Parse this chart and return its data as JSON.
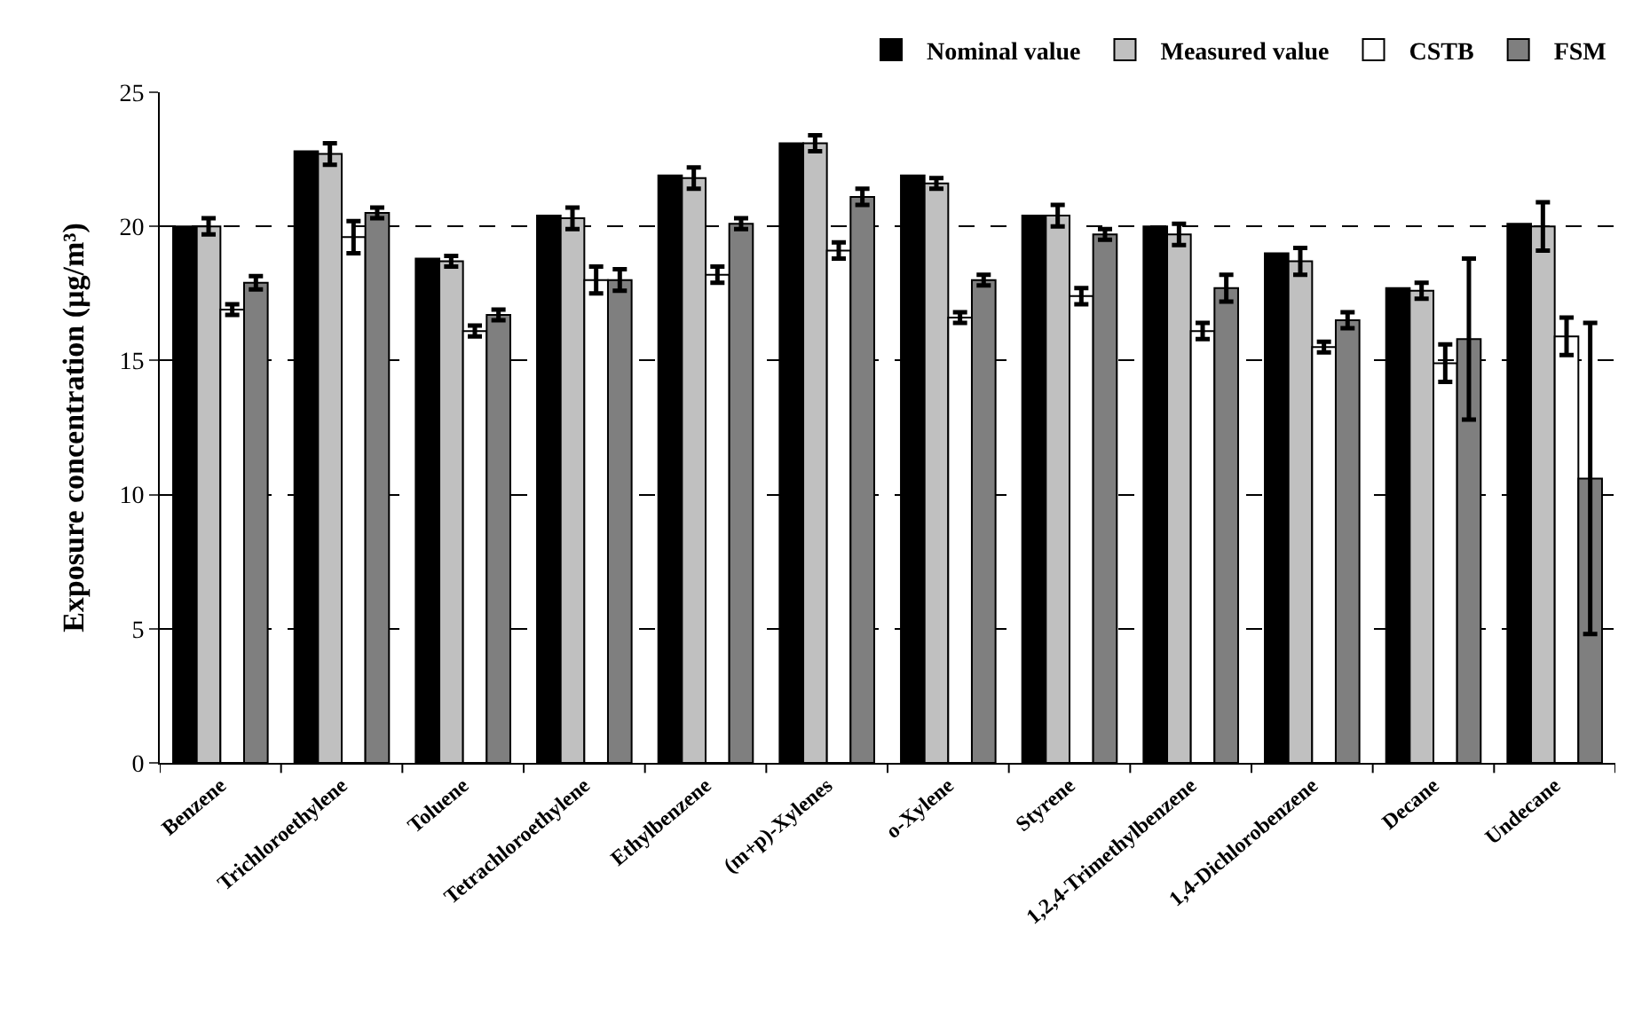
{
  "chart_data": {
    "type": "bar",
    "ylabel": "Exposure concentration (µg/m³)",
    "categories": [
      "Benzene",
      "Trichloroethylene",
      "Toluene",
      "Tetrachloroethylene",
      "Ethylbenzene",
      "(m+p)-Xylenes",
      "o-Xylene",
      "Styrene",
      "1,2,4-Trimethylbenzene",
      "1,4-Dichlorobenzene",
      "Decane",
      "Undecane"
    ],
    "series": [
      {
        "name": "Nominal value",
        "color": "#000000",
        "values": [
          20.0,
          22.8,
          18.8,
          20.4,
          21.9,
          23.1,
          21.9,
          20.4,
          20.0,
          19.0,
          17.7,
          20.1
        ]
      },
      {
        "name": "Measured value",
        "color": "#c0c0c0",
        "values": [
          20.0,
          22.7,
          18.7,
          20.3,
          21.8,
          23.1,
          21.6,
          20.4,
          19.7,
          18.7,
          17.6,
          20.0
        ],
        "errors": [
          0.3,
          0.4,
          0.2,
          0.4,
          0.4,
          0.3,
          0.2,
          0.4,
          0.4,
          0.5,
          0.3,
          0.9
        ]
      },
      {
        "name": "CSTB",
        "color": "#ffffff",
        "values": [
          16.9,
          19.6,
          16.1,
          18.0,
          18.2,
          19.1,
          16.6,
          17.4,
          16.1,
          15.5,
          14.9,
          15.9
        ],
        "errors": [
          0.2,
          0.6,
          0.2,
          0.5,
          0.3,
          0.3,
          0.2,
          0.3,
          0.3,
          0.2,
          0.7,
          0.7
        ]
      },
      {
        "name": "FSM",
        "color": "#7f7f7f",
        "values": [
          17.9,
          20.5,
          16.7,
          18.0,
          20.1,
          21.1,
          18.0,
          19.7,
          17.7,
          16.5,
          15.8,
          10.6
        ],
        "errors": [
          0.25,
          0.2,
          0.2,
          0.4,
          0.2,
          0.3,
          0.2,
          0.2,
          0.5,
          0.3,
          3.0,
          5.8
        ]
      }
    ],
    "ylim": [
      0,
      25
    ],
    "yticks": [
      0,
      5,
      10,
      15,
      20,
      25
    ],
    "grid": "y",
    "legend": "top right"
  }
}
